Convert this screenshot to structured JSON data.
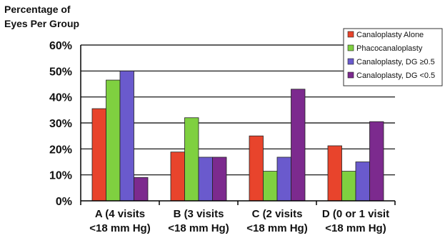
{
  "chart_data": {
    "type": "bar",
    "title": "",
    "ylabel": [
      "Percentage of",
      "Eyes Per Group"
    ],
    "xlabel": "",
    "ylim": [
      0,
      60
    ],
    "yticks": [
      "0%",
      "10%",
      "20%",
      "30%",
      "40%",
      "50%",
      "60%"
    ],
    "grid": true,
    "legend_position": "top-right",
    "categories": [
      [
        "A (4 visits",
        "<18 mm Hg)"
      ],
      [
        "B (3 visits",
        "<18 mm Hg)"
      ],
      [
        "C (2 visits",
        "<18 mm Hg)"
      ],
      [
        "D (0 or 1 visit",
        "<18 mm Hg)"
      ]
    ],
    "series": [
      {
        "name": "Canaloplasty Alone",
        "color": "#e8442c",
        "values": [
          35.5,
          18.8,
          25.0,
          21.2
        ]
      },
      {
        "name": "Phacocanaloplasty",
        "color": "#7fd040",
        "values": [
          46.5,
          32.0,
          11.4,
          11.4
        ]
      },
      {
        "name": "Canaloplasty, DG ≥0.5",
        "color": "#6a5acd",
        "values": [
          50.0,
          16.8,
          16.8,
          15.0
        ]
      },
      {
        "name": "Canaloplasty, DG <0.5",
        "color": "#7c2a8e",
        "values": [
          9.0,
          16.8,
          43.0,
          30.5
        ]
      }
    ]
  }
}
